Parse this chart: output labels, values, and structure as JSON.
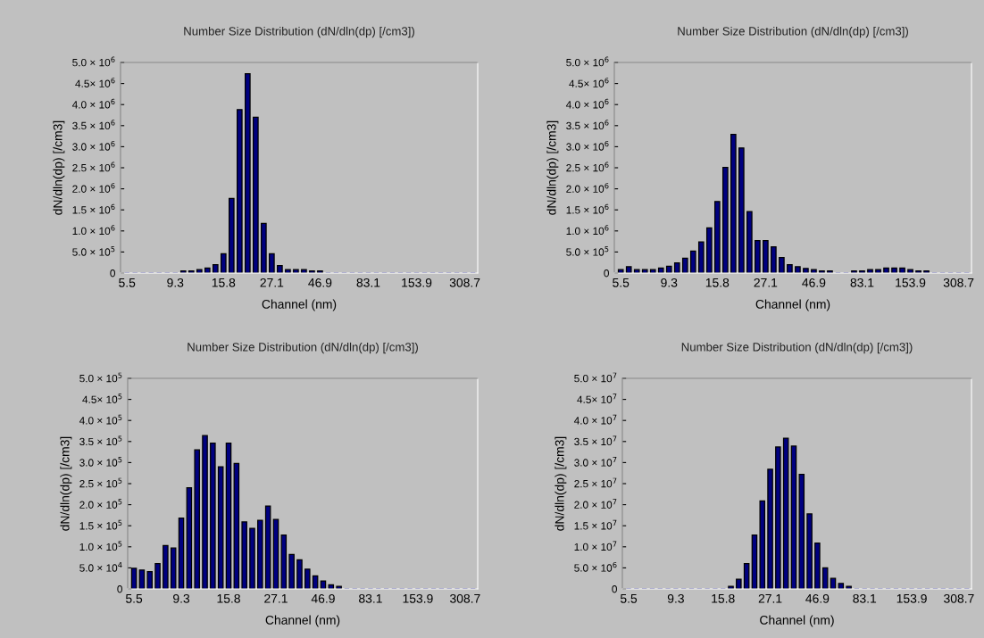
{
  "chart_data": [
    {
      "type": "bar",
      "title": "Number Size Distribution (dN/dln(dp) [/cm3])",
      "xlabel": "Channel (nm)",
      "ylabel": "dN/dln(dp) [/cm3]",
      "color": "#000080",
      "categories": [
        "5.5",
        null,
        null,
        null,
        null,
        null,
        "9.3",
        null,
        null,
        null,
        null,
        null,
        "15.8",
        null,
        null,
        null,
        null,
        null,
        "27.1",
        null,
        null,
        null,
        null,
        null,
        "46.9",
        null,
        null,
        null,
        null,
        null,
        "83.1",
        null,
        null,
        null,
        null,
        null,
        "153.9",
        null,
        null,
        null,
        null,
        null,
        "308.7",
        null
      ],
      "values": [
        0,
        0,
        0,
        0,
        0,
        0,
        0,
        50000,
        50000,
        80000,
        120000,
        200000,
        460000,
        1770000,
        3880000,
        4730000,
        3700000,
        1180000,
        460000,
        180000,
        80000,
        80000,
        80000,
        50000,
        50000,
        0,
        0,
        0,
        0,
        0,
        0,
        0,
        0,
        0,
        0,
        0,
        0,
        0,
        0,
        0,
        0,
        0,
        0,
        0
      ],
      "ylim": [
        0,
        5000000
      ],
      "yticks": [
        0,
        {
          "value": 500000,
          "label": "5.0 × 10$^{5}$"
        },
        {
          "value": 1000000,
          "label": "1.0 × 10$^{6}$"
        },
        {
          "value": 1500000,
          "label": "1.5 × 10$^{6}$"
        },
        {
          "value": 2000000,
          "label": "2.0 × 10$^{6}$"
        },
        {
          "value": 2500000,
          "label": "2.5 × 10$^{6}$"
        },
        {
          "value": 3000000,
          "label": "3.0 × 10$^{6}$"
        },
        {
          "value": 3500000,
          "label": "3.5 × 10$^{6}$"
        },
        {
          "value": 4000000,
          "label": "4.0 × 10$^{6}$"
        },
        {
          "value": 4500000,
          "label": "4.5× 10$^{6}$"
        },
        {
          "value": 5000000,
          "label": "5.0 × 10$^{6}$"
        }
      ],
      "grid": false,
      "legend": false
    },
    {
      "type": "bar",
      "title": "Number Size Distribution (dN/dln(dp) [/cm3])",
      "xlabel": "Channel (nm)",
      "ylabel": "dN/dln(dp) [/cm3]",
      "color": "#000080",
      "categories": [
        "5.5",
        null,
        null,
        null,
        null,
        null,
        "9.3",
        null,
        null,
        null,
        null,
        null,
        "15.8",
        null,
        null,
        null,
        null,
        null,
        "27.1",
        null,
        null,
        null,
        null,
        null,
        "46.9",
        null,
        null,
        null,
        null,
        null,
        "83.1",
        null,
        null,
        null,
        null,
        null,
        "153.9",
        null,
        null,
        null,
        null,
        null,
        "308.7",
        null
      ],
      "values": [
        80000,
        150000,
        80000,
        80000,
        80000,
        120000,
        160000,
        240000,
        350000,
        520000,
        740000,
        1070000,
        1700000,
        2510000,
        3290000,
        2970000,
        1460000,
        770000,
        770000,
        620000,
        370000,
        200000,
        150000,
        110000,
        80000,
        50000,
        50000,
        0,
        0,
        50000,
        50000,
        80000,
        80000,
        120000,
        120000,
        120000,
        80000,
        50000,
        50000,
        0,
        0,
        0,
        0,
        0
      ],
      "ylim": [
        0,
        5000000
      ],
      "yticks": [
        0,
        {
          "value": 500000,
          "label": "5.0 × 10$^{5}$"
        },
        {
          "value": 1000000,
          "label": "1.0 × 10$^{6}$"
        },
        {
          "value": 1500000,
          "label": "1.5 × 10$^{6}$"
        },
        {
          "value": 2000000,
          "label": "2.0 × 10$^{6}$"
        },
        {
          "value": 2500000,
          "label": "2.5 × 10$^{6}$"
        },
        {
          "value": 3000000,
          "label": "3.0 × 10$^{6}$"
        },
        {
          "value": 3500000,
          "label": "3.5 × 10$^{6}$"
        },
        {
          "value": 4000000,
          "label": "4.0 × 10$^{6}$"
        },
        {
          "value": 4500000,
          "label": "4.5× 10$^{6}$"
        },
        {
          "value": 5000000,
          "label": "5.0 × 10$^{6}$"
        }
      ],
      "grid": false,
      "legend": false
    },
    {
      "type": "bar",
      "title": "Number Size Distribution (dN/dln(dp) [/cm3])",
      "xlabel": "Channel (nm)",
      "ylabel": "dN/dln(dp) [/cm3]",
      "color": "#000080",
      "categories": [
        "5.5",
        null,
        null,
        null,
        null,
        null,
        "9.3",
        null,
        null,
        null,
        null,
        null,
        "15.8",
        null,
        null,
        null,
        null,
        null,
        "27.1",
        null,
        null,
        null,
        null,
        null,
        "46.9",
        null,
        null,
        null,
        null,
        null,
        "83.1",
        null,
        null,
        null,
        null,
        null,
        "153.9",
        null,
        null,
        null,
        null,
        null,
        "308.7",
        null
      ],
      "values": [
        49000,
        45000,
        41000,
        60000,
        103000,
        97000,
        168000,
        240000,
        330000,
        364000,
        346000,
        290000,
        346000,
        298000,
        159000,
        144000,
        163000,
        197000,
        165000,
        128000,
        82000,
        69000,
        47000,
        31000,
        19000,
        10000,
        6000,
        0,
        0,
        0,
        0,
        0,
        0,
        0,
        0,
        0,
        0,
        0,
        0,
        0,
        0,
        0,
        0,
        0
      ],
      "ylim": [
        0,
        500000
      ],
      "yticks": [
        0,
        {
          "value": 50000,
          "label": "5.0 × 10$^{4}$"
        },
        {
          "value": 100000,
          "label": "1.0 × 10$^{5}$"
        },
        {
          "value": 150000,
          "label": "1.5 × 10$^{5}$"
        },
        {
          "value": 200000,
          "label": "2.0 × 10$^{5}$"
        },
        {
          "value": 250000,
          "label": "2.5 × 10$^{5}$"
        },
        {
          "value": 300000,
          "label": "3.0 × 10$^{5}$"
        },
        {
          "value": 350000,
          "label": "3.5 × 10$^{5}$"
        },
        {
          "value": 400000,
          "label": "4.0 × 10$^{5}$"
        },
        {
          "value": 450000,
          "label": "4.5× 10$^{5}$"
        },
        {
          "value": 500000,
          "label": "5.0 × 10$^{5}$"
        }
      ],
      "grid": false,
      "legend": false
    },
    {
      "type": "bar",
      "title": "Number Size Distribution (dN/dln(dp) [/cm3])",
      "xlabel": "Channel (nm)",
      "ylabel": "dN/dln(dp) [/cm3]",
      "color": "#000080",
      "categories": [
        "5.5",
        null,
        null,
        null,
        null,
        null,
        "9.3",
        null,
        null,
        null,
        null,
        null,
        "15.8",
        null,
        null,
        null,
        null,
        null,
        "27.1",
        null,
        null,
        null,
        null,
        null,
        "46.9",
        null,
        null,
        null,
        null,
        null,
        "83.1",
        null,
        null,
        null,
        null,
        null,
        "153.9",
        null,
        null,
        null,
        null,
        null,
        "308.7",
        null
      ],
      "values": [
        0,
        0,
        0,
        0,
        0,
        0,
        0,
        0,
        0,
        0,
        0,
        0,
        0,
        600000,
        2300000,
        6000000,
        12800000,
        20900000,
        28400000,
        33700000,
        35800000,
        33900000,
        27200000,
        17800000,
        10900000,
        5000000,
        2500000,
        1300000,
        600000,
        0,
        0,
        0,
        0,
        0,
        0,
        0,
        0,
        0,
        0,
        0,
        0,
        0,
        0,
        0
      ],
      "ylim": [
        0,
        50000000
      ],
      "yticks": [
        0,
        {
          "value": 5000000,
          "label": "5.0 × 10$^{6}$"
        },
        {
          "value": 10000000,
          "label": "1.0 × 10$^{7}$"
        },
        {
          "value": 15000000,
          "label": "1.5 × 10$^{7}$"
        },
        {
          "value": 20000000,
          "label": "2.0 × 10$^{7}$"
        },
        {
          "value": 25000000,
          "label": "2.5 × 10$^{7}$"
        },
        {
          "value": 30000000,
          "label": "3.0 × 10$^{7}$"
        },
        {
          "value": 35000000,
          "label": "3.5 × 10$^{7}$"
        },
        {
          "value": 40000000,
          "label": "4.0 × 10$^{7}$"
        },
        {
          "value": 45000000,
          "label": "4.5× 10$^{7}$"
        },
        {
          "value": 50000000,
          "label": "5.0 × 10$^{7}$"
        }
      ],
      "grid": false,
      "legend": false
    }
  ]
}
